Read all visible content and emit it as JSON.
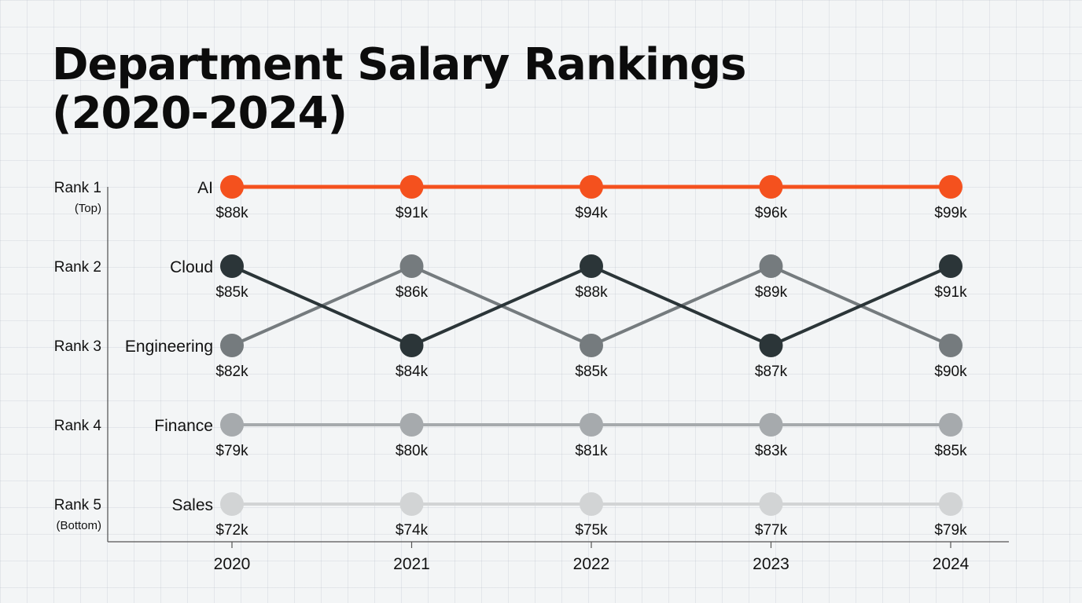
{
  "title": "Department Salary Rankings (2020-2024)",
  "chart_data": {
    "type": "line",
    "title": "Department Salary Rankings (2020-2024)",
    "x": [
      "2020",
      "2021",
      "2022",
      "2023",
      "2024"
    ],
    "rank_labels": [
      "Rank 1",
      "Rank 2",
      "Rank 3",
      "Rank 4",
      "Rank 5"
    ],
    "rank_sublabels": {
      "1": "(Top)",
      "5": "(Bottom)"
    },
    "y_axis": "rank",
    "ylim": [
      1,
      5
    ],
    "grid": true,
    "series": [
      {
        "name": "AI",
        "color": "#f4511e",
        "ranks": [
          1,
          1,
          1,
          1,
          1
        ],
        "salaries": [
          "$88k",
          "$91k",
          "$94k",
          "$96k",
          "$99k"
        ]
      },
      {
        "name": "Cloud",
        "color": "#2b3538",
        "ranks": [
          2,
          3,
          2,
          3,
          2
        ],
        "salaries": [
          "$85k",
          "$84k",
          "$88k",
          "$87k",
          "$91k"
        ]
      },
      {
        "name": "Engineering",
        "color": "#757b7e",
        "ranks": [
          3,
          2,
          3,
          2,
          3
        ],
        "salaries": [
          "$82k",
          "$86k",
          "$85k",
          "$89k",
          "$90k"
        ]
      },
      {
        "name": "Finance",
        "color": "#a6aaad",
        "ranks": [
          4,
          4,
          4,
          4,
          4
        ],
        "salaries": [
          "$79k",
          "$80k",
          "$81k",
          "$83k",
          "$85k"
        ]
      },
      {
        "name": "Sales",
        "color": "#d2d4d5",
        "ranks": [
          5,
          5,
          5,
          5,
          5
        ],
        "salaries": [
          "$72k",
          "$74k",
          "$75k",
          "$77k",
          "$79k"
        ]
      }
    ]
  }
}
